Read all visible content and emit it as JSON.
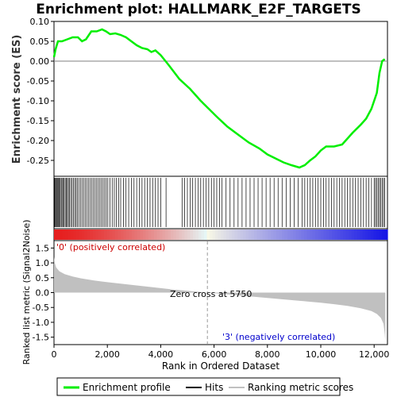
{
  "chart_data": {
    "type": "line",
    "title": "Enrichment plot: HALLMARK_E2F_TARGETS",
    "xlabel": "Rank in Ordered Dataset",
    "xlim": [
      0,
      12500
    ],
    "x_ticks": [
      "0",
      "2,000",
      "4,000",
      "6,000",
      "8,000",
      "10,000",
      "12,000"
    ],
    "x_tick_values": [
      0,
      2000,
      4000,
      6000,
      8000,
      10000,
      12000
    ],
    "top_panel": {
      "ylabel": "Enrichment score (ES)",
      "ylim": [
        -0.29,
        0.1
      ],
      "y_ticks": [
        "0.10",
        "0.05",
        "0.00",
        "-0.05",
        "-0.10",
        "-0.15",
        "-0.20",
        "-0.25"
      ],
      "y_tick_values": [
        0.1,
        0.05,
        0.0,
        -0.05,
        -0.1,
        -0.15,
        -0.2,
        -0.25
      ],
      "series": [
        {
          "name": "Enrichment profile",
          "color": "#00ee00",
          "x": [
            0,
            60,
            150,
            300,
            500,
            700,
            900,
            1050,
            1200,
            1400,
            1600,
            1800,
            1950,
            2100,
            2300,
            2500,
            2700,
            2900,
            3100,
            3300,
            3500,
            3650,
            3800,
            4000,
            4300,
            4700,
            5100,
            5500,
            5800,
            6100,
            6500,
            6900,
            7300,
            7700,
            8000,
            8300,
            8600,
            8900,
            9200,
            9400,
            9600,
            9800,
            10000,
            10200,
            10500,
            10800,
            11000,
            11200,
            11500,
            11700,
            11900,
            12100,
            12200,
            12300,
            12400
          ],
          "y": [
            0.01,
            0.03,
            0.05,
            0.05,
            0.055,
            0.06,
            0.06,
            0.05,
            0.055,
            0.075,
            0.075,
            0.08,
            0.075,
            0.068,
            0.07,
            0.066,
            0.06,
            0.05,
            0.04,
            0.033,
            0.03,
            0.023,
            0.027,
            0.015,
            -0.01,
            -0.045,
            -0.07,
            -0.1,
            -0.12,
            -0.14,
            -0.165,
            -0.185,
            -0.205,
            -0.22,
            -0.235,
            -0.245,
            -0.255,
            -0.262,
            -0.268,
            -0.262,
            -0.25,
            -0.24,
            -0.225,
            -0.215,
            -0.215,
            -0.21,
            -0.195,
            -0.18,
            -0.16,
            -0.145,
            -0.12,
            -0.08,
            -0.03,
            0.0,
            0.005
          ]
        }
      ],
      "hits_label": "Hits",
      "hit_ranks": [
        20,
        50,
        80,
        110,
        140,
        170,
        200,
        230,
        270,
        300,
        340,
        380,
        420,
        460,
        500,
        540,
        580,
        630,
        680,
        730,
        780,
        830,
        880,
        940,
        1000,
        1060,
        1120,
        1180,
        1240,
        1300,
        1360,
        1420,
        1480,
        1540,
        1600,
        1660,
        1720,
        1780,
        1840,
        1900,
        1960,
        2020,
        2100,
        2180,
        2260,
        2340,
        2420,
        2500,
        2600,
        2700,
        2800,
        2900,
        3000,
        3100,
        3200,
        3300,
        3400,
        3500,
        3600,
        3700,
        3800,
        3900,
        4000,
        4200,
        4800,
        4900,
        5000,
        5100,
        5200,
        5300,
        5400,
        5500,
        5600,
        5700,
        5800,
        5900,
        6000,
        6100,
        6200,
        6300,
        6450,
        6600,
        6750,
        6900,
        7050,
        7200,
        7350,
        7500,
        7650,
        7800,
        7950,
        8100,
        8250,
        8400,
        8550,
        8700,
        8850,
        9000,
        9150,
        9300,
        9400,
        9500,
        9600,
        9700,
        9800,
        9900,
        10000,
        10100,
        10200,
        10300,
        10400,
        10500,
        10600,
        10700,
        10800,
        10900,
        11000,
        11100,
        11200,
        11300,
        11400,
        11500,
        11600,
        11700,
        11800,
        11900,
        12000,
        12050,
        12100,
        12150,
        12200,
        12250,
        12300,
        12350,
        12400
      ]
    },
    "bottom_panel": {
      "ylabel": "Ranked list metric (Signal2Noise)",
      "ylim": [
        -1.75,
        1.75
      ],
      "y_ticks": [
        "1.5",
        "1.0",
        "0.5",
        "0.0",
        "-0.5",
        "-1.0",
        "-1.5"
      ],
      "y_tick_values": [
        1.5,
        1.0,
        0.5,
        0.0,
        -0.5,
        -1.0,
        -1.5
      ],
      "series": [
        {
          "name": "Ranking metric scores",
          "color": "#c0c0c0",
          "x": [
            0,
            30,
            80,
            200,
            400,
            700,
            1000,
            1500,
            2000,
            2500,
            3000,
            3500,
            4000,
            4500,
            5000,
            5500,
            5750,
            6000,
            6500,
            7000,
            7500,
            8000,
            8500,
            9000,
            9500,
            10000,
            10500,
            11000,
            11500,
            11900,
            12100,
            12250,
            12350,
            12400,
            12420
          ],
          "y": [
            1.2,
            1.0,
            0.85,
            0.72,
            0.62,
            0.54,
            0.48,
            0.41,
            0.35,
            0.3,
            0.25,
            0.2,
            0.15,
            0.1,
            0.06,
            0.02,
            0.0,
            -0.02,
            -0.06,
            -0.1,
            -0.14,
            -0.18,
            -0.22,
            -0.26,
            -0.3,
            -0.34,
            -0.39,
            -0.45,
            -0.53,
            -0.62,
            -0.72,
            -0.85,
            -1.05,
            -1.4,
            -1.65
          ]
        }
      ],
      "label_positive": "'0' (positively correlated)",
      "label_negative": "'3' (negatively correlated)",
      "zero_cross_label": "Zero cross at 5750",
      "zero_cross": 5750
    },
    "legend": {
      "placement": "bottom",
      "items": [
        {
          "label": "Enrichment profile",
          "color": "#00ee00"
        },
        {
          "label": "Hits",
          "color": "#000000"
        },
        {
          "label": "Ranking metric scores",
          "color": "#c0c0c0"
        }
      ]
    }
  }
}
